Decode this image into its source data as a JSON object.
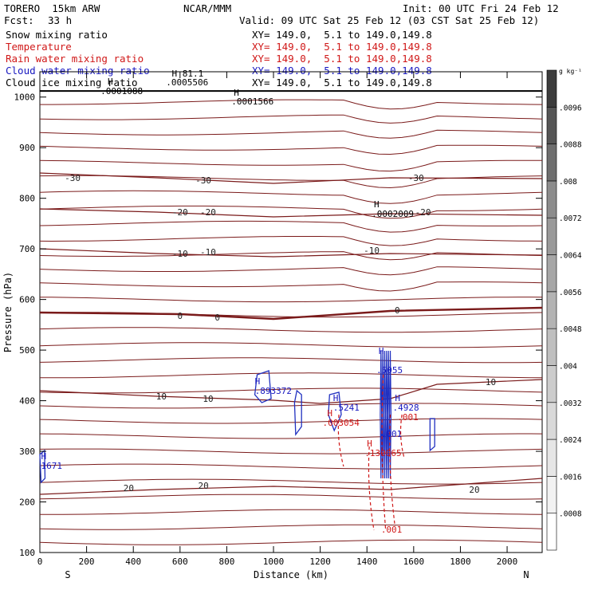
{
  "header": {
    "model": "TORERO  15km ARW",
    "center": "NCAR/MMM",
    "init": "Init: 00 UTC Fri 24 Feb 12",
    "fcst_label": "Fcst:",
    "fcst_value": "33 h",
    "valid": "Valid: 09 UTC Sat 25 Feb 12 (03 CST Sat 25 Feb 12)"
  },
  "legend": [
    {
      "name": "Snow mixing ratio",
      "xy": "XY= 149.0,  5.1 to 149.0,149.8",
      "color": "#000000"
    },
    {
      "name": "Temperature",
      "xy": "XY= 149.0,  5.1 to 149.0,149.8",
      "color": "#d01818"
    },
    {
      "name": "Rain water mixing ratio",
      "xy": "XY= 149.0,  5.1 to 149.0,149.8",
      "color": "#d01818"
    },
    {
      "name": "Cloud water mixing ratio",
      "xy": "XY= 149.0,  5.1 to 149.0,149.8",
      "color": "#1818c0"
    },
    {
      "name": "Cloud ice mixing ratio",
      "xy": "XY= 149.0,  5.1 to 149.0,149.8",
      "color": "#000000"
    }
  ],
  "chart_data": {
    "type": "contour",
    "xlabel": "Distance (km)",
    "ylabel": "Pressure (hPa)",
    "x_ticks": [
      "0",
      "200",
      "400",
      "600",
      "800",
      "1000",
      "1200",
      "1400",
      "1600",
      "1800",
      "2000"
    ],
    "y_ticks": [
      "100",
      "200",
      "300",
      "400",
      "500",
      "600",
      "700",
      "800",
      "900",
      "1000"
    ],
    "xlim": [
      0,
      2150
    ],
    "ylim": [
      1050,
      100
    ],
    "y_scale": "linear, pressure decreasing upward",
    "left_label": "S",
    "right_label": "N",
    "colorbar": {
      "unit": "g kg⁻¹",
      "labels": [
        ".0008",
        ".0016",
        ".0024",
        ".0032",
        ".004",
        ".0048",
        ".0056",
        ".0064",
        ".0072",
        ".008",
        ".0088",
        ".0096"
      ],
      "colors": [
        "#ffffff",
        "#f2f2f2",
        "#e6e6e6",
        "#d9d9d9",
        "#cccccc",
        "#bfbfbf",
        "#b3b3b3",
        "#a6a6a6",
        "#999999",
        "#8c8c8c",
        "#6e6e6e",
        "#555555",
        "#3c3c3c"
      ]
    },
    "temperature_contours": [
      {
        "label": "-30",
        "points": [
          [
            0,
            217
          ],
          [
            500,
            223
          ],
          [
            1000,
            230
          ],
          [
            1500,
            223
          ],
          [
            2150,
            224
          ]
        ],
        "label_positions": [
          [
            140,
            223
          ],
          [
            700,
            226
          ],
          [
            1610,
            223
          ]
        ],
        "bold": false
      },
      {
        "label": "-20",
        "points": [
          [
            0,
            262
          ],
          [
            500,
            266
          ],
          [
            1000,
            272
          ],
          [
            1500,
            268
          ],
          [
            2150,
            270
          ]
        ],
        "label_positions": [
          [
            600,
            266
          ],
          [
            720,
            266
          ],
          [
            1640,
            266
          ]
        ],
        "bold": false
      },
      {
        "label": "-10",
        "points": [
          [
            0,
            312
          ],
          [
            500,
            318
          ],
          [
            1000,
            322
          ],
          [
            1500,
            318
          ],
          [
            2150,
            320
          ]
        ],
        "label_positions": [
          [
            600,
            318
          ],
          [
            720,
            316
          ],
          [
            1420,
            314
          ]
        ],
        "bold": false
      },
      {
        "label": "0",
        "points": [
          [
            0,
            392
          ],
          [
            600,
            394
          ],
          [
            1000,
            400
          ],
          [
            1500,
            390
          ],
          [
            2150,
            386
          ]
        ],
        "label_positions": [
          [
            600,
            396
          ],
          [
            760,
            398
          ],
          [
            1530,
            389
          ]
        ],
        "bold": true
      },
      {
        "label": "10",
        "points": [
          [
            0,
            490
          ],
          [
            500,
            497
          ],
          [
            1000,
            502
          ],
          [
            1200,
            506
          ],
          [
            1500,
            500
          ],
          [
            1700,
            482
          ],
          [
            2150,
            476
          ]
        ],
        "label_positions": [
          [
            520,
            497
          ],
          [
            720,
            500
          ],
          [
            1930,
            479
          ]
        ],
        "bold": false
      },
      {
        "label": "20",
        "points": [
          [
            0,
            620
          ],
          [
            500,
            614
          ],
          [
            1000,
            610
          ],
          [
            1500,
            614
          ],
          [
            2150,
            600
          ]
        ],
        "label_positions": [
          [
            380,
            612
          ],
          [
            700,
            609
          ],
          [
            1860,
            614
          ]
        ],
        "bold": false
      }
    ],
    "annotations": [
      {
        "text": ".0001088",
        "x": 260,
        "y": 118,
        "color": "#000000"
      },
      {
        "text": "H",
        "x": 290,
        "y": 106,
        "color": "#000000"
      },
      {
        "text": "H 81.1",
        "x": 565,
        "y": 96,
        "color": "#000000"
      },
      {
        "text": ".0005506",
        "x": 540,
        "y": 107,
        "color": "#000000"
      },
      {
        "text": "H",
        "x": 830,
        "y": 120,
        "color": "#000000"
      },
      {
        "text": ".0001566",
        "x": 820,
        "y": 131,
        "color": "#000000"
      },
      {
        "text": "H",
        "x": 1430,
        "y": 260,
        "color": "#000000"
      },
      {
        "text": ".0002009",
        "x": 1420,
        "y": 272,
        "color": "#000000"
      },
      {
        "text": "H",
        "x": 920,
        "y": 482,
        "color": "#1818c0"
      },
      {
        "text": ".893372",
        "x": 920,
        "y": 494,
        "color": "#1818c0"
      },
      {
        "text": "H",
        "x": 1255,
        "y": 503,
        "color": "#1818c0"
      },
      {
        "text": ".5241",
        "x": 1255,
        "y": 515,
        "color": "#1818c0"
      },
      {
        "text": "H",
        "x": 1230,
        "y": 522,
        "color": "#d01818"
      },
      {
        "text": ".003054",
        "x": 1210,
        "y": 534,
        "color": "#d01818"
      },
      {
        "text": "H",
        "x": 1450,
        "y": 444,
        "color": "#1818c0"
      },
      {
        "text": ".5055",
        "x": 1440,
        "y": 468,
        "color": "#1818c0"
      },
      {
        "text": "H",
        "x": 1520,
        "y": 503,
        "color": "#1818c0"
      },
      {
        "text": ".4928",
        "x": 1510,
        "y": 515,
        "color": "#1818c0"
      },
      {
        "text": ".001",
        "x": 1530,
        "y": 527,
        "color": "#d01818"
      },
      {
        "text": "H",
        "x": 1400,
        "y": 560,
        "color": "#d01818"
      },
      {
        "text": ".130065",
        "x": 1390,
        "y": 572,
        "color": "#d01818"
      },
      {
        "text": ".001",
        "x": 1460,
        "y": 548,
        "color": "#1818c0"
      },
      {
        "text": "H",
        "x": 5,
        "y": 576,
        "color": "#1818c0"
      },
      {
        "text": "1671",
        "x": 5,
        "y": 588,
        "color": "#1818c0"
      },
      {
        "text": ".001",
        "x": 1460,
        "y": 668,
        "color": "#d01818"
      }
    ]
  }
}
